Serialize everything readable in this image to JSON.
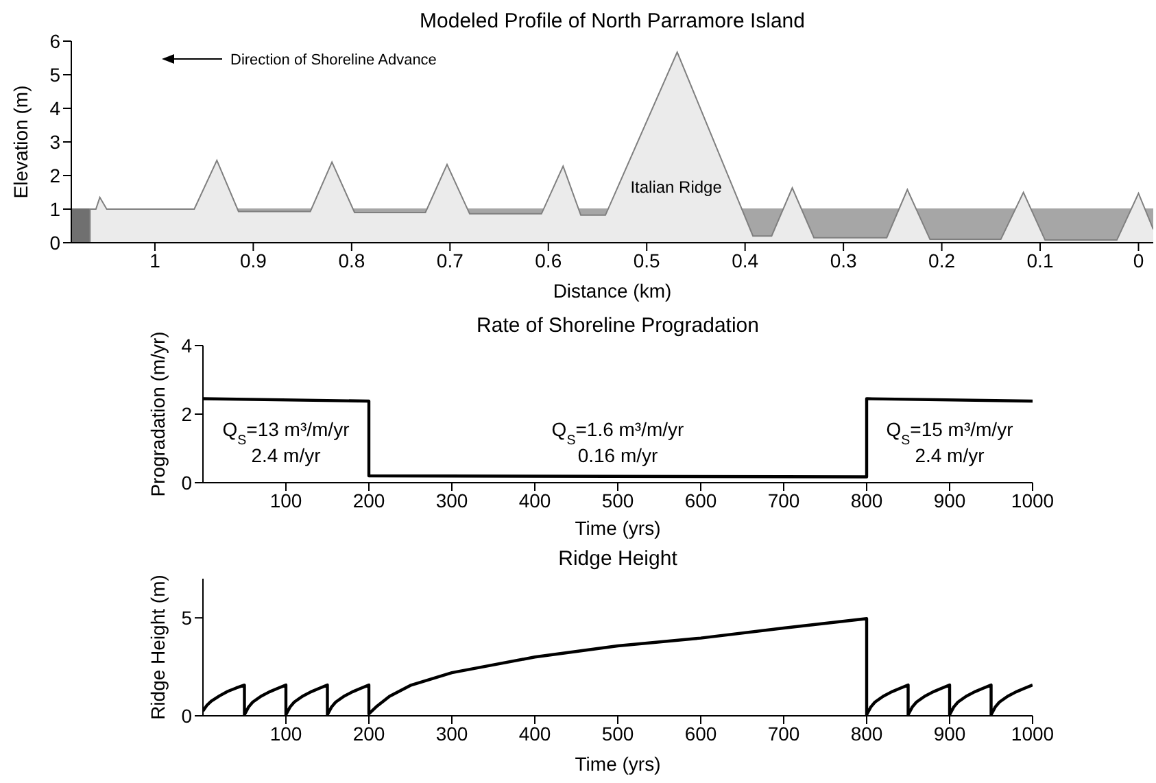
{
  "chart_data": [
    {
      "type": "area",
      "title": "Modeled Profile of North Parramore Island",
      "xlabel": "Distance (km)",
      "ylabel": "Elevation (m)",
      "xlim": [
        1.085,
        -0.015
      ],
      "xticks": [
        1,
        0.9,
        0.8,
        0.7,
        0.6,
        0.5,
        0.4,
        0.3,
        0.2,
        0.1,
        0
      ],
      "ylim": [
        0,
        6
      ],
      "yticks": [
        0,
        1,
        2,
        3,
        4,
        5,
        6
      ],
      "series": [
        {
          "color": "#707070",
          "x": [
            1.085,
            1.066
          ],
          "values": [
            1,
            1
          ]
        },
        {
          "color": "#a6a6a6",
          "x": [
            1.066,
            -0.015
          ],
          "values": [
            1,
            1
          ]
        },
        {
          "color": "#ebebeb",
          "x": [
            1.066,
            1.066,
            1.06,
            1.056,
            1.049,
            0.96,
            0.937,
            0.915,
            0.842,
            0.82,
            0.797,
            0.725,
            0.703,
            0.68,
            0.607,
            0.585,
            0.567,
            0.542,
            0.469,
            0.392,
            0.373,
            0.352,
            0.33,
            0.256,
            0.235,
            0.212,
            0.14,
            0.117,
            0.095,
            0.022,
            0.0,
            -0.015
          ],
          "values": [
            0,
            1,
            1,
            1.35,
            1,
            1,
            2.45,
            0.93,
            0.93,
            2.4,
            0.9,
            0.9,
            2.33,
            0.86,
            0.86,
            2.28,
            0.82,
            0.82,
            5.67,
            0.2,
            0.2,
            1.63,
            0.15,
            0.15,
            1.58,
            0.1,
            0.1,
            1.5,
            0.08,
            0.08,
            1.47,
            0.4
          ]
        }
      ],
      "annotations": [
        "Direction of Shoreline Advance",
        "Italian Ridge"
      ]
    },
    {
      "type": "line",
      "title": "Rate of Shoreline Progradation",
      "xlabel": "Time (yrs)",
      "ylabel": "Progradation (m/yr)",
      "xlim": [
        0,
        1000
      ],
      "xticks": [
        100,
        200,
        300,
        400,
        500,
        600,
        700,
        800,
        900,
        1000
      ],
      "ylim": [
        0,
        4
      ],
      "yticks": [
        0,
        2,
        4
      ],
      "series": [
        {
          "color": "#000000",
          "x": [
            0,
            200,
            200,
            800,
            800,
            1000
          ],
          "values": [
            2.45,
            2.38,
            0.2,
            0.17,
            2.45,
            2.38
          ]
        }
      ],
      "annotations": [
        "Q$_{S}$=13 m³/m/yr",
        "2.4 m/yr",
        "Q$_{S}$=1.6 m³/m/yr",
        "0.16 m/yr",
        "Q$_{S}$=15 m³/m/yr",
        "2.4 m/yr"
      ]
    },
    {
      "type": "line",
      "title": "Ridge Height",
      "xlabel": "Time (yrs)",
      "ylabel": "Ridge Height (m)",
      "xlim": [
        0,
        1000
      ],
      "xticks": [
        100,
        200,
        300,
        400,
        500,
        600,
        700,
        800,
        900,
        1000
      ],
      "ylim": [
        0,
        7
      ],
      "yticks": [
        0,
        5
      ],
      "series": [
        {
          "color": "#000000",
          "x": [
            0,
            5,
            10,
            20,
            30,
            40,
            50,
            50,
            55,
            60,
            70,
            80,
            90,
            100,
            100,
            105,
            110,
            120,
            130,
            140,
            150,
            150,
            155,
            160,
            170,
            180,
            190,
            200,
            200,
            210,
            225,
            250,
            300,
            400,
            500,
            600,
            700,
            800,
            800,
            805,
            810,
            820,
            830,
            840,
            850,
            850,
            855,
            860,
            870,
            880,
            890,
            900,
            900,
            905,
            910,
            920,
            930,
            940,
            950,
            950,
            955,
            960,
            970,
            980,
            990,
            1000
          ],
          "values": [
            0.25,
            0.55,
            0.75,
            1.02,
            1.25,
            1.42,
            1.57,
            0.05,
            0.45,
            0.7,
            1.0,
            1.22,
            1.4,
            1.57,
            0.05,
            0.45,
            0.7,
            1.0,
            1.22,
            1.4,
            1.57,
            0.05,
            0.45,
            0.7,
            1.0,
            1.22,
            1.4,
            1.57,
            0.1,
            0.5,
            1.0,
            1.55,
            2.2,
            3.0,
            3.57,
            3.97,
            4.48,
            4.96,
            0.05,
            0.45,
            0.7,
            1.0,
            1.22,
            1.4,
            1.57,
            0.05,
            0.45,
            0.7,
            1.0,
            1.22,
            1.4,
            1.57,
            0.05,
            0.45,
            0.7,
            1.0,
            1.22,
            1.4,
            1.57,
            0.05,
            0.45,
            0.7,
            1.0,
            1.22,
            1.4,
            1.57
          ]
        }
      ]
    }
  ]
}
